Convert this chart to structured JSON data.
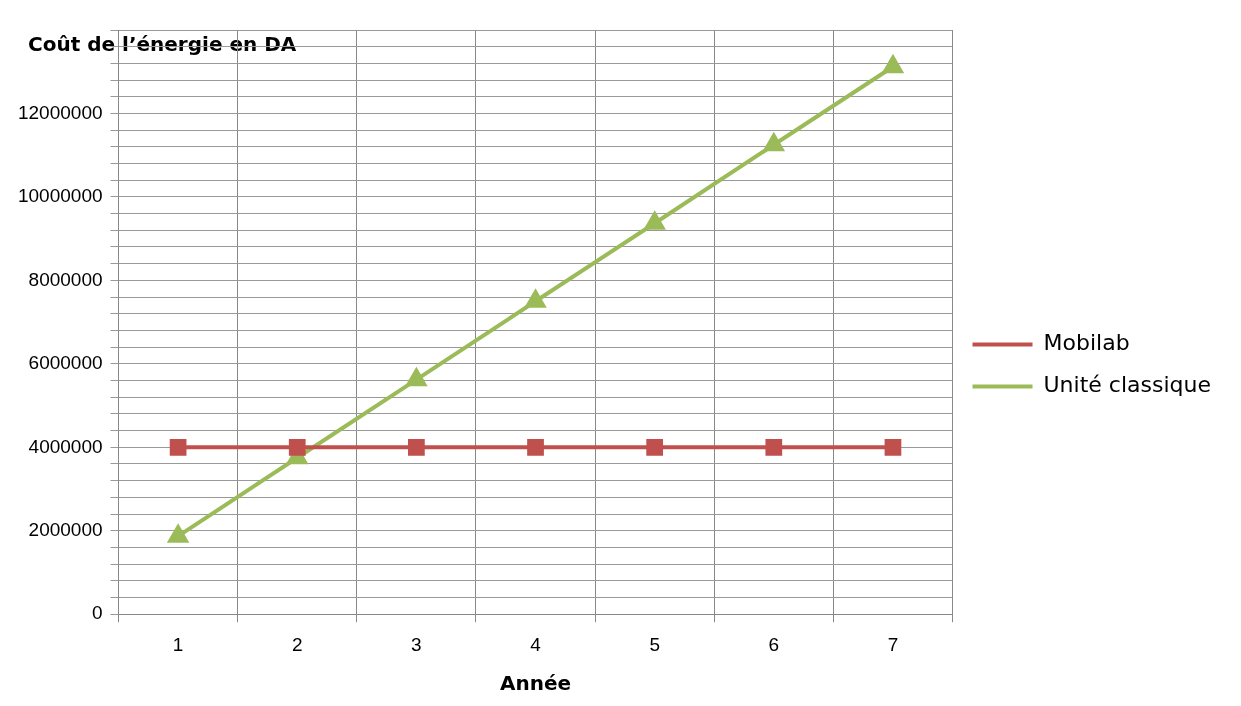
{
  "chart_data": {
    "type": "line",
    "title": "Coût  de l’énergie en DA",
    "xlabel": "Année",
    "categories": [
      "1",
      "2",
      "3",
      "4",
      "5",
      "6",
      "7"
    ],
    "series": [
      {
        "name": "Mobilab",
        "color": "#c0504d",
        "marker": "square",
        "values": [
          4000000,
          4000000,
          4000000,
          4000000,
          4000000,
          4000000,
          4000000
        ]
      },
      {
        "name": "Unité classique",
        "color": "#9bbb59",
        "marker": "triangle",
        "values": [
          1870000,
          3750000,
          5620000,
          7500000,
          9370000,
          11250000,
          13120000
        ]
      }
    ],
    "ylim": [
      0,
      14000000
    ],
    "yticks": [
      0,
      {
        "value": 400000,
        "label": null
      },
      {
        "value": 800000,
        "label": null
      },
      {
        "value": 1200000,
        "label": null
      },
      {
        "value": 1600000,
        "label": null
      },
      2000000,
      {
        "value": 2400000,
        "label": null
      },
      {
        "value": 2800000,
        "label": null
      },
      {
        "value": 3200000,
        "label": null
      },
      {
        "value": 3600000,
        "label": null
      },
      4000000,
      {
        "value": 4400000,
        "label": null
      },
      {
        "value": 4800000,
        "label": null
      },
      {
        "value": 5200000,
        "label": null
      },
      {
        "value": 5600000,
        "label": null
      },
      6000000,
      {
        "value": 6400000,
        "label": null
      },
      {
        "value": 6800000,
        "label": null
      },
      {
        "value": 7200000,
        "label": null
      },
      {
        "value": 7600000,
        "label": null
      },
      8000000,
      {
        "value": 8400000,
        "label": null
      },
      {
        "value": 8800000,
        "label": null
      },
      {
        "value": 9200000,
        "label": null
      },
      {
        "value": 9600000,
        "label": null
      },
      10000000,
      {
        "value": 10400000,
        "label": null
      },
      {
        "value": 10800000,
        "label": null
      },
      {
        "value": 11200000,
        "label": null
      },
      {
        "value": 11600000,
        "label": null
      },
      12000000,
      {
        "value": 12400000,
        "label": null
      },
      {
        "value": 12800000,
        "label": null
      },
      {
        "value": 13200000,
        "label": null
      },
      {
        "value": 13600000,
        "label": null
      },
      {
        "value": 14000000,
        "label": null
      }
    ],
    "grid": true,
    "legend": "right",
    "line_style": "solid"
  }
}
